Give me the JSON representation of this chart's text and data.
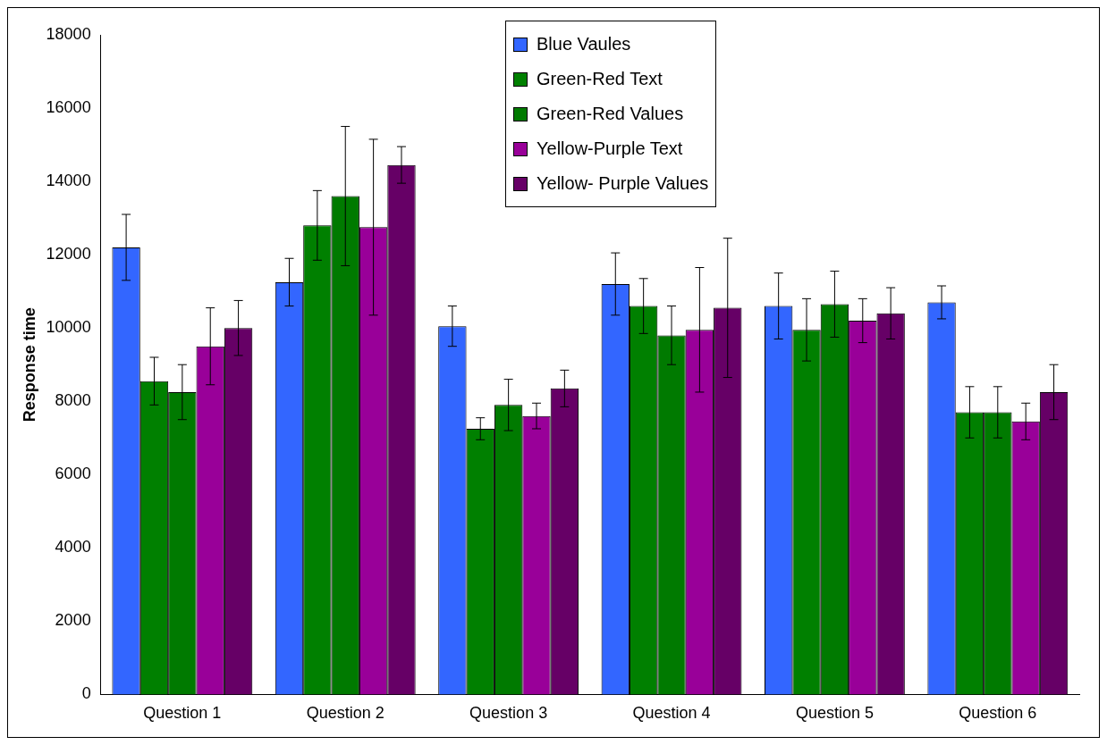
{
  "chart_data": {
    "type": "bar",
    "ylabel": "Response time",
    "categories": [
      "Question 1",
      "Question 2",
      "Question 3",
      "Question 4",
      "Question 5",
      "Question 6"
    ],
    "ylim": [
      0,
      18000
    ],
    "yticks": [
      0,
      2000,
      4000,
      6000,
      8000,
      10000,
      12000,
      14000,
      16000,
      18000
    ],
    "grid": false,
    "legend": "top",
    "series": [
      {
        "name": "Blue Vaules",
        "color": "#3366ff",
        "values": [
          12200,
          11250,
          10050,
          11200,
          10600,
          10700
        ],
        "errors": [
          900,
          650,
          550,
          850,
          900,
          450
        ]
      },
      {
        "name": "Green-Red Text",
        "color": "#008000",
        "values": [
          8550,
          12800,
          7250,
          10600,
          9950,
          7700
        ],
        "errors": [
          650,
          950,
          300,
          750,
          850,
          700
        ]
      },
      {
        "name": "Green-Red Values",
        "color": "#007a00",
        "values": [
          8250,
          13600,
          7900,
          9800,
          10650,
          7700
        ],
        "errors": [
          750,
          1900,
          700,
          800,
          900,
          700
        ]
      },
      {
        "name": "Yellow-Purple Text",
        "color": "#990099",
        "values": [
          9500,
          12750,
          7600,
          9950,
          10200,
          7450
        ],
        "errors": [
          1050,
          2400,
          350,
          1700,
          600,
          500
        ]
      },
      {
        "name": "Yellow- Purple Values",
        "color": "#660066",
        "values": [
          10000,
          14450,
          8350,
          10550,
          10400,
          8250
        ],
        "errors": [
          750,
          500,
          500,
          1900,
          700,
          750
        ]
      }
    ]
  }
}
